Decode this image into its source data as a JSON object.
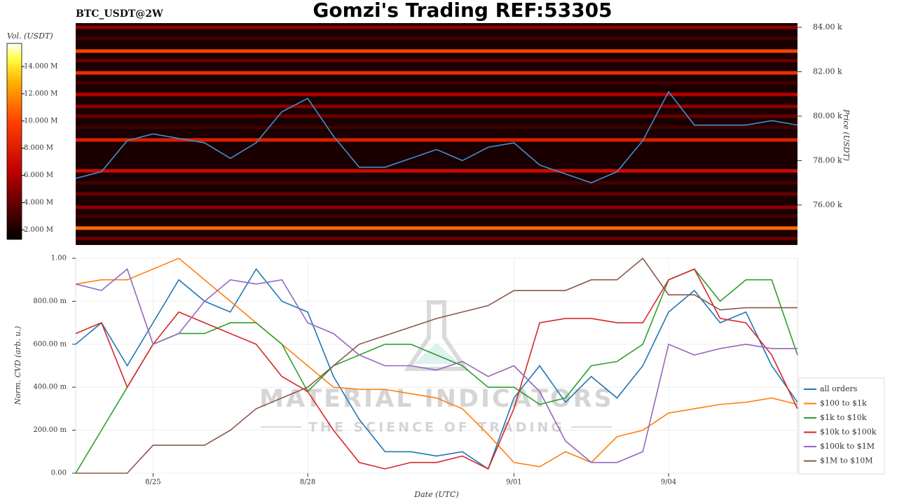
{
  "chart_data": [
    {
      "type": "heatmap",
      "title": "Gomzi's Trading REF:53305",
      "subtitle": "BTC_USDT@2W",
      "y_label": "Price (USDT)",
      "ylim": [
        74.2,
        84.19
      ],
      "yticks": [
        {
          "value": 76,
          "label": "76.00 k"
        },
        {
          "value": 78,
          "label": "78.00 k"
        },
        {
          "value": 80,
          "label": "80.00 k"
        },
        {
          "value": 82,
          "label": "82.00 k"
        },
        {
          "value": 84,
          "label": "84.00 k"
        }
      ],
      "colormap": "hot",
      "colorbar_label": "Vol. (USDT)",
      "clim": [
        1.3,
        15.7
      ],
      "cticks": [
        {
          "value": 2,
          "label": "2.000 M"
        },
        {
          "value": 4,
          "label": "4.000 M"
        },
        {
          "value": 6,
          "label": "6.000 M"
        },
        {
          "value": 8,
          "label": "8.000 M"
        },
        {
          "value": 10,
          "label": "10.000 M"
        },
        {
          "value": 12,
          "label": "12.000 M"
        },
        {
          "value": 14,
          "label": "14.000 M"
        }
      ],
      "levels": [
        84.0,
        83.5,
        82.93,
        82.5,
        81.95,
        81.5,
        80.98,
        80.44,
        80.0,
        79.5,
        78.93,
        77.54,
        77.0,
        76.5,
        75.9,
        75.5,
        74.96,
        74.5
      ],
      "level_volumes": [
        5,
        3,
        10,
        4,
        9,
        3,
        6,
        5,
        4,
        3,
        8,
        7,
        3,
        4,
        5,
        3,
        11,
        4
      ],
      "color": "#3d8fd1",
      "values": [
        77.2,
        77.5,
        78.9,
        79.2,
        79.0,
        78.8,
        78.1,
        78.8,
        80.2,
        80.8,
        79.1,
        77.7,
        77.7,
        78.1,
        78.5,
        78.0,
        78.6,
        78.8,
        77.8,
        77.4,
        77.0,
        77.5,
        78.9,
        81.1,
        79.6,
        79.6,
        79.6,
        79.8,
        79.6
      ]
    },
    {
      "type": "line",
      "x_label": "Date (UTC)",
      "y_label": "Norm. CVD (arb. u.)",
      "categories": [
        null,
        null,
        null,
        "8/25",
        null,
        null,
        null,
        null,
        null,
        "8/28",
        null,
        null,
        null,
        null,
        null,
        null,
        null,
        "9/01",
        null,
        null,
        null,
        null,
        null,
        "9/04",
        null,
        null,
        null,
        null,
        null
      ],
      "ylim": [
        0,
        1
      ],
      "yticks": [
        {
          "value": 0,
          "label": "0.00"
        },
        {
          "value": 0.2,
          "label": "200.00 m"
        },
        {
          "value": 0.4,
          "label": "400.00 m"
        },
        {
          "value": 0.6,
          "label": "600.00 m"
        },
        {
          "value": 0.8,
          "label": "800.00 m"
        },
        {
          "value": 1,
          "label": "1.00"
        }
      ],
      "grid": true,
      "legend": "lower right",
      "annotations": [
        "MATERIAL INDICATORS",
        "THE SCIENCE OF TRADING"
      ],
      "series": [
        {
          "name": "all orders",
          "color": "#1f77b4",
          "values": [
            0.6,
            0.7,
            0.5,
            0.7,
            0.9,
            0.8,
            0.75,
            0.95,
            0.8,
            0.75,
            0.45,
            0.25,
            0.1,
            0.1,
            0.08,
            0.1,
            0.02,
            0.35,
            0.5,
            0.33,
            0.45,
            0.35,
            0.5,
            0.75,
            0.85,
            0.7,
            0.75,
            0.5,
            0.33
          ]
        },
        {
          "name": "$100 to $1k",
          "color": "#ff7f0e",
          "values": [
            0.88,
            0.9,
            0.9,
            0.95,
            1.0,
            0.9,
            0.8,
            0.7,
            0.6,
            0.5,
            0.4,
            0.39,
            0.39,
            0.37,
            0.35,
            0.3,
            0.18,
            0.05,
            0.03,
            0.1,
            0.05,
            0.17,
            0.2,
            0.28,
            0.3,
            0.32,
            0.33,
            0.35,
            0.32
          ]
        },
        {
          "name": "$1k to $10k",
          "color": "#2ca02c",
          "values": [
            0.0,
            0.2,
            0.4,
            0.6,
            0.65,
            0.65,
            0.7,
            0.7,
            0.6,
            0.38,
            0.5,
            0.55,
            0.6,
            0.6,
            0.55,
            0.5,
            0.4,
            0.4,
            0.32,
            0.35,
            0.5,
            0.52,
            0.6,
            0.9,
            0.95,
            0.8,
            0.9,
            0.9,
            0.55
          ]
        },
        {
          "name": "$10k to $100k",
          "color": "#d62728",
          "values": [
            0.65,
            0.7,
            0.4,
            0.6,
            0.75,
            0.7,
            0.65,
            0.6,
            0.45,
            0.38,
            0.2,
            0.05,
            0.02,
            0.05,
            0.05,
            0.08,
            0.02,
            0.3,
            0.7,
            0.72,
            0.72,
            0.7,
            0.7,
            0.9,
            0.95,
            0.72,
            0.7,
            0.55,
            0.3
          ]
        },
        {
          "name": "$100k to $1M",
          "color": "#9467bd",
          "values": [
            0.88,
            0.85,
            0.95,
            0.6,
            0.65,
            0.8,
            0.9,
            0.88,
            0.9,
            0.7,
            0.65,
            0.55,
            0.5,
            0.5,
            0.48,
            0.52,
            0.45,
            0.5,
            0.38,
            0.15,
            0.05,
            0.05,
            0.1,
            0.6,
            0.55,
            0.58,
            0.6,
            0.58,
            0.58
          ]
        },
        {
          "name": "$1M to $10M",
          "color": "#8c564b",
          "values": [
            0,
            0,
            0,
            0.13,
            0.13,
            0.13,
            0.2,
            0.3,
            0.35,
            0.4,
            0.5,
            0.6,
            0.64,
            0.68,
            0.72,
            0.75,
            0.78,
            0.85,
            0.85,
            0.85,
            0.9,
            0.9,
            1.0,
            0.83,
            0.83,
            0.76,
            0.77,
            0.77,
            0.77
          ]
        }
      ]
    }
  ]
}
